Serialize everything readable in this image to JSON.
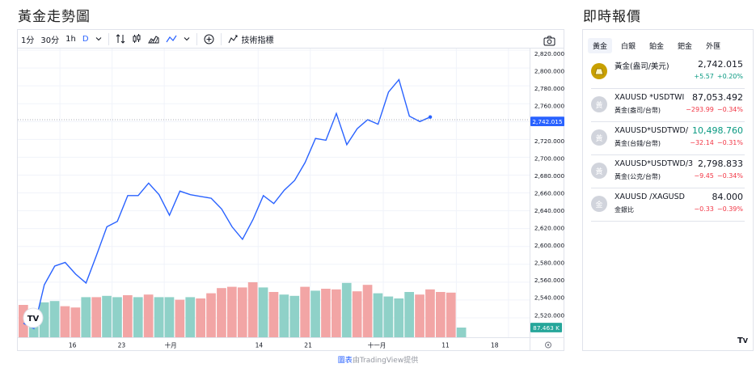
{
  "page_title": "黃金走勢圖",
  "side_title": "即時報價",
  "toolbar": {
    "intervals": [
      "1分",
      "30分",
      "1h",
      "D"
    ],
    "indicators_label": "技術指標"
  },
  "chart_data": {
    "type": "line",
    "title": "",
    "xlabel": "",
    "ylabel": "",
    "ylim": [
      2500,
      2820
    ],
    "y_ticks": [
      2520,
      2540,
      2560,
      2580,
      2600,
      2620,
      2640,
      2660,
      2680,
      2700,
      2720,
      2740,
      2760,
      2780,
      2800,
      2820
    ],
    "x_ticks": [
      "16",
      "23",
      "十月",
      "14",
      "21",
      "十一月",
      "11",
      "18"
    ],
    "x_tick_index": [
      3,
      8,
      13,
      22,
      27,
      34,
      41,
      46
    ],
    "total_slots": 48,
    "series": [
      {
        "values": [
          2514,
          2508,
          2557,
          2578,
          2582,
          2569,
          2559,
          2590,
          2622,
          2628,
          2657,
          2657,
          2671,
          2658,
          2635,
          2662,
          2658,
          2656,
          2654,
          2642,
          2622,
          2608,
          2630,
          2657,
          2648,
          2663,
          2674,
          2694,
          2721,
          2719,
          2749,
          2714,
          2732,
          2742,
          2737,
          2773,
          2787,
          2746,
          2740,
          2745
        ]
      }
    ],
    "volume": {
      "label": "87.463 K",
      "values": [
        50,
        40,
        54,
        56,
        48,
        46,
        62,
        62,
        64,
        62,
        65,
        62,
        66,
        62,
        62,
        58,
        62,
        60,
        68,
        76,
        78,
        77,
        85,
        77,
        70,
        66,
        64,
        78,
        72,
        75,
        74,
        84,
        71,
        81,
        68,
        63,
        60,
        70,
        66,
        74,
        70,
        69,
        15
      ],
      "up": [
        false,
        true,
        true,
        true,
        false,
        false,
        true,
        false,
        true,
        true,
        false,
        true,
        false,
        true,
        true,
        false,
        true,
        false,
        false,
        false,
        false,
        false,
        false,
        true,
        false,
        true,
        true,
        false,
        true,
        false,
        false,
        true,
        false,
        false,
        true,
        true,
        true,
        true,
        false,
        false,
        false,
        false,
        true
      ]
    },
    "last_price_label": "2,742.015",
    "last_price": 2742.015,
    "grid": true,
    "colors": {
      "line": "#2962ff",
      "volume_up": "#8fd1c8",
      "volume_down": "#f2a5a5",
      "last_price_bg": "#2962ff",
      "volume_badge_bg": "#26a69a"
    }
  },
  "attribution": {
    "prefix": "",
    "link": "圖表",
    "suffix": "由TradingView提供"
  },
  "quote_tabs": [
    "黃金",
    "白銀",
    "鉑金",
    "鈀金",
    "外匯"
  ],
  "quotes": [
    {
      "icon": "gold-bar-icon",
      "icon_color": "#c8a000",
      "symbol": "黃金(盎司/美元)",
      "desc": "",
      "price": "2,742.015",
      "change": "+5.57",
      "pct": "+0.20%",
      "trend": "up"
    },
    {
      "icon": "placeholder-icon",
      "icon_color": "#d1d4dc",
      "icon_char": "黃",
      "symbol": "XAUUSD *USDTWI",
      "desc": "黃金(盎司/台幣)",
      "price": "87,053.492",
      "change": "−293.99",
      "pct": "−0.34%",
      "trend": "down"
    },
    {
      "icon": "placeholder-icon",
      "icon_color": "#d1d4dc",
      "icon_char": "黃",
      "symbol": "XAUUSD*USDTWD/",
      "desc": "黃金(台錢/台幣)",
      "price": "10,498.760",
      "change": "−32.14",
      "pct": "−0.31%",
      "trend": "down"
    },
    {
      "icon": "placeholder-icon",
      "icon_color": "#d1d4dc",
      "icon_char": "黃",
      "symbol": "XAUUSD*USDTWD/3",
      "desc": "黃金(公克/台幣)",
      "price": "2,798.833",
      "change": "−9.45",
      "pct": "−0.34%",
      "trend": "down"
    },
    {
      "icon": "placeholder-icon",
      "icon_color": "#d1d4dc",
      "icon_char": "金",
      "symbol": "XAUUSD /XAGUSD",
      "desc": "金銀比",
      "price": "84.000",
      "change": "−0.33",
      "pct": "−0.39%",
      "trend": "down"
    }
  ],
  "trend_colors": {
    "up": "#089981",
    "down": "#f23645"
  }
}
